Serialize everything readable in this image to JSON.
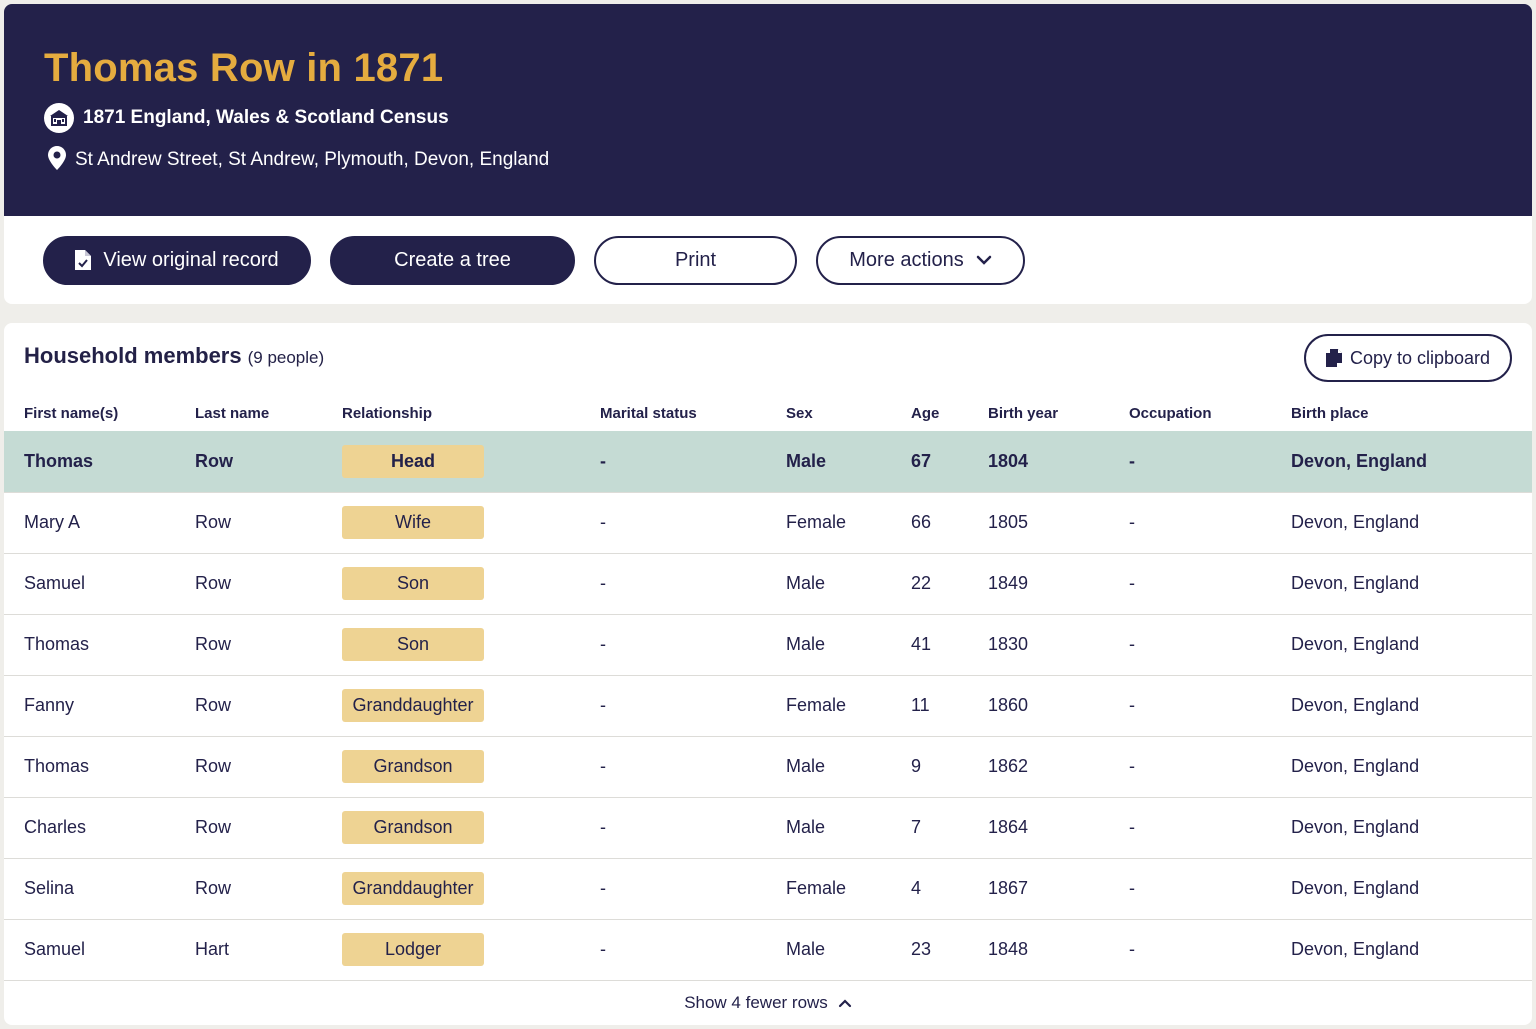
{
  "header": {
    "title": "Thomas Row in 1871",
    "collection": "1871 England, Wales & Scotland Census",
    "location": "St Andrew Street, St Andrew, Plymouth, Devon, England",
    "icons": [
      "census-building-icon",
      "location-pin-icon"
    ]
  },
  "actions": {
    "view_original": "View original record",
    "create_tree": "Create a tree",
    "print": "Print",
    "more_actions": "More actions"
  },
  "household": {
    "title": "Household members",
    "count": "(9 people)",
    "copy_label": "Copy to clipboard",
    "columns": [
      "First name(s)",
      "Last name",
      "Relationship",
      "Marital status",
      "Sex",
      "Age",
      "Birth year",
      "Occupation",
      "Birth place"
    ],
    "rows": [
      {
        "first": "Thomas",
        "last": "Row",
        "relationship": "Head",
        "marital": "-",
        "sex": "Male",
        "age": "67",
        "birth_year": "1804",
        "occupation": "-",
        "birth_place": "Devon, England"
      },
      {
        "first": "Mary A",
        "last": "Row",
        "relationship": "Wife",
        "marital": "-",
        "sex": "Female",
        "age": "66",
        "birth_year": "1805",
        "occupation": "-",
        "birth_place": "Devon, England"
      },
      {
        "first": "Samuel",
        "last": "Row",
        "relationship": "Son",
        "marital": "-",
        "sex": "Male",
        "age": "22",
        "birth_year": "1849",
        "occupation": "-",
        "birth_place": "Devon, England"
      },
      {
        "first": "Thomas",
        "last": "Row",
        "relationship": "Son",
        "marital": "-",
        "sex": "Male",
        "age": "41",
        "birth_year": "1830",
        "occupation": "-",
        "birth_place": "Devon, England"
      },
      {
        "first": "Fanny",
        "last": "Row",
        "relationship": "Granddaughter",
        "marital": "-",
        "sex": "Female",
        "age": "11",
        "birth_year": "1860",
        "occupation": "-",
        "birth_place": "Devon, England"
      },
      {
        "first": "Thomas",
        "last": "Row",
        "relationship": "Grandson",
        "marital": "-",
        "sex": "Male",
        "age": "9",
        "birth_year": "1862",
        "occupation": "-",
        "birth_place": "Devon, England"
      },
      {
        "first": "Charles",
        "last": "Row",
        "relationship": "Grandson",
        "marital": "-",
        "sex": "Male",
        "age": "7",
        "birth_year": "1864",
        "occupation": "-",
        "birth_place": "Devon, England"
      },
      {
        "first": "Selina",
        "last": "Row",
        "relationship": "Granddaughter",
        "marital": "-",
        "sex": "Female",
        "age": "4",
        "birth_year": "1867",
        "occupation": "-",
        "birth_place": "Devon, England"
      },
      {
        "first": "Samuel",
        "last": "Hart",
        "relationship": "Lodger",
        "marital": "-",
        "sex": "Male",
        "age": "23",
        "birth_year": "1848",
        "occupation": "-",
        "birth_place": "Devon, England"
      }
    ],
    "toggle_label": "Show 4 fewer rows"
  },
  "colors": {
    "navy": "#23214a",
    "gold_title": "#e5ac3f",
    "relationship_badge": "#eed393",
    "highlight_row": "#c5dbd4"
  }
}
